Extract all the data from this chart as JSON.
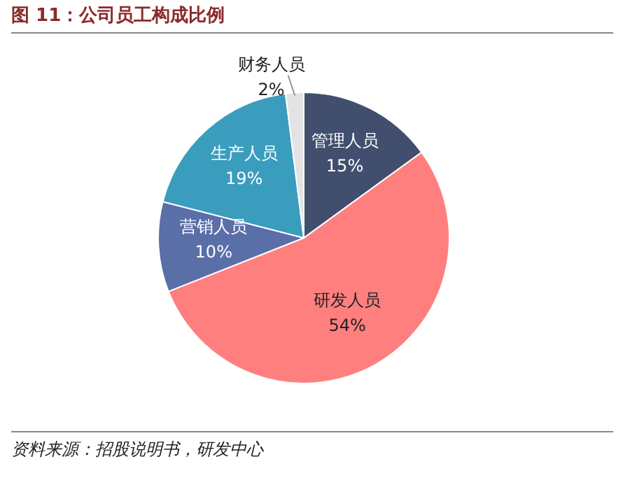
{
  "chart_data": {
    "type": "pie",
    "title": "图 11：公司员工构成比例",
    "categories": [
      "管理人员",
      "研发人员",
      "营销人员",
      "生产人员",
      "财务人员"
    ],
    "values": [
      15,
      54,
      10,
      19,
      2
    ],
    "value_labels": [
      "15%",
      "54%",
      "10%",
      "19%",
      "2%"
    ],
    "colors": [
      "#414e6e",
      "#ff7f7f",
      "#5a6ea8",
      "#3b9dbd",
      "#e3e3e3"
    ],
    "annotations": [
      "资料来源：招股说明书，研发中心"
    ]
  }
}
